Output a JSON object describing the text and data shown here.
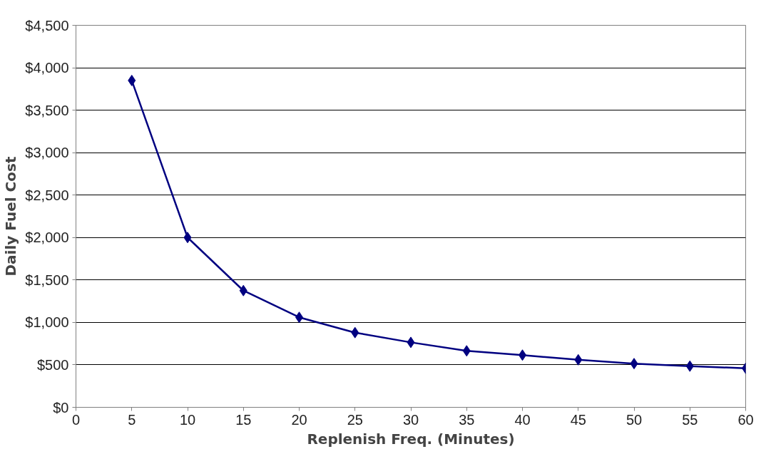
{
  "chart_data": {
    "type": "line",
    "xlabel": "Replenish Freq. (Minutes)",
    "ylabel": "Daily Fuel Cost",
    "x": [
      5,
      10,
      15,
      20,
      25,
      30,
      35,
      40,
      45,
      50,
      55,
      60
    ],
    "series": [
      {
        "color": "#000080",
        "values": [
          3850,
          2000,
          1375,
          1060,
          880,
          765,
          665,
          615,
          560,
          515,
          485,
          460
        ]
      }
    ],
    "xlim": [
      0,
      60
    ],
    "ylim": [
      0,
      4500
    ],
    "xticks": [
      0,
      5,
      10,
      15,
      20,
      25,
      30,
      35,
      40,
      45,
      50,
      55,
      60
    ],
    "yticks": [
      {
        "value": 0,
        "label": "$0"
      },
      {
        "value": 500,
        "label": "$500"
      },
      {
        "value": 1000,
        "label": "$1,000"
      },
      {
        "value": 1500,
        "label": "$1,500"
      },
      {
        "value": 2000,
        "label": "$2,000"
      },
      {
        "value": 2500,
        "label": "$2,500"
      },
      {
        "value": 3000,
        "label": "$3,000"
      },
      {
        "value": 3500,
        "label": "$3,500"
      },
      {
        "value": 4000,
        "label": "$4,000"
      },
      {
        "value": 4500,
        "label": "$4,500"
      }
    ],
    "grid": "y",
    "marker": "diamond",
    "line_style": "solid"
  }
}
